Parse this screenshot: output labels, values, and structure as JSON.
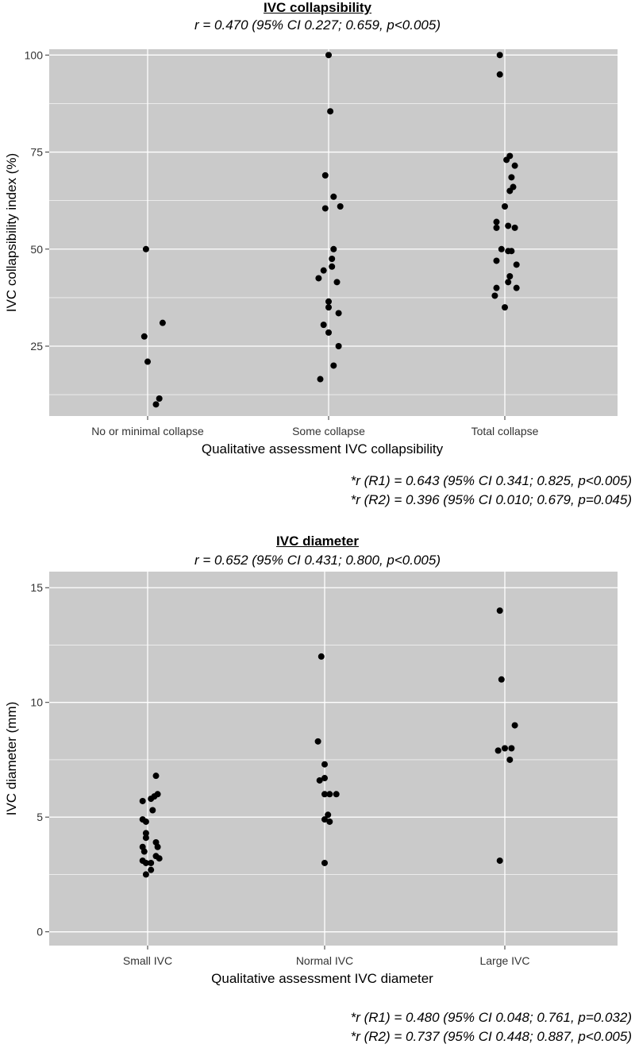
{
  "chart_data": [
    {
      "type": "scatter",
      "title": "IVC collapsibility",
      "subtitle": "r = 0.470 (95% CI 0.227; 0.659, p<0.005)",
      "xlabel": "Qualitative assessment IVC collapsibility",
      "ylabel": "IVC collapsibility index (%)",
      "categories": [
        "No or minimal collapse",
        "Some collapse",
        "Total collapse"
      ],
      "yticks": [
        25,
        50,
        75,
        100
      ],
      "ylim": [
        7,
        101.5
      ],
      "notes": [
        "*r (R1) = 0.643 (95% CI 0.341; 0.825, p<0.005)",
        "*r (R2) = 0.396 (95% CI 0.010; 0.679, p=0.045)"
      ],
      "points": [
        {
          "category": 0,
          "jitter": -0.01,
          "y": 50
        },
        {
          "category": 0,
          "jitter": 0.09,
          "y": 31
        },
        {
          "category": 0,
          "jitter": -0.02,
          "y": 27.5
        },
        {
          "category": 0,
          "jitter": 0.0,
          "y": 21
        },
        {
          "category": 0,
          "jitter": 0.07,
          "y": 11.5
        },
        {
          "category": 0,
          "jitter": 0.05,
          "y": 10
        },
        {
          "category": 1,
          "jitter": 0.0,
          "y": 100
        },
        {
          "category": 1,
          "jitter": 0.01,
          "y": 85.5
        },
        {
          "category": 1,
          "jitter": -0.02,
          "y": 69
        },
        {
          "category": 1,
          "jitter": 0.03,
          "y": 63.5
        },
        {
          "category": 1,
          "jitter": 0.07,
          "y": 61
        },
        {
          "category": 1,
          "jitter": -0.02,
          "y": 60.5
        },
        {
          "category": 1,
          "jitter": 0.03,
          "y": 50
        },
        {
          "category": 1,
          "jitter": 0.02,
          "y": 47.5
        },
        {
          "category": 1,
          "jitter": 0.02,
          "y": 45.5
        },
        {
          "category": 1,
          "jitter": -0.03,
          "y": 44.5
        },
        {
          "category": 1,
          "jitter": -0.06,
          "y": 42.5
        },
        {
          "category": 1,
          "jitter": 0.05,
          "y": 41.5
        },
        {
          "category": 1,
          "jitter": 0.0,
          "y": 36.5
        },
        {
          "category": 1,
          "jitter": 0.0,
          "y": 35
        },
        {
          "category": 1,
          "jitter": 0.06,
          "y": 33.5
        },
        {
          "category": 1,
          "jitter": -0.03,
          "y": 30.5
        },
        {
          "category": 1,
          "jitter": 0.0,
          "y": 28.5
        },
        {
          "category": 1,
          "jitter": 0.06,
          "y": 25
        },
        {
          "category": 1,
          "jitter": 0.03,
          "y": 20
        },
        {
          "category": 1,
          "jitter": -0.05,
          "y": 16.5
        },
        {
          "category": 2,
          "jitter": -0.03,
          "y": 100
        },
        {
          "category": 2,
          "jitter": -0.03,
          "y": 95
        },
        {
          "category": 2,
          "jitter": 0.03,
          "y": 74
        },
        {
          "category": 2,
          "jitter": 0.01,
          "y": 73
        },
        {
          "category": 2,
          "jitter": 0.06,
          "y": 71.5
        },
        {
          "category": 2,
          "jitter": 0.04,
          "y": 68.5
        },
        {
          "category": 2,
          "jitter": 0.05,
          "y": 66
        },
        {
          "category": 2,
          "jitter": 0.03,
          "y": 65
        },
        {
          "category": 2,
          "jitter": 0.0,
          "y": 61
        },
        {
          "category": 2,
          "jitter": -0.05,
          "y": 57
        },
        {
          "category": 2,
          "jitter": -0.05,
          "y": 55.5
        },
        {
          "category": 2,
          "jitter": 0.02,
          "y": 56
        },
        {
          "category": 2,
          "jitter": 0.06,
          "y": 55.5
        },
        {
          "category": 2,
          "jitter": -0.02,
          "y": 50
        },
        {
          "category": 2,
          "jitter": 0.02,
          "y": 49.5
        },
        {
          "category": 2,
          "jitter": 0.04,
          "y": 49.5
        },
        {
          "category": 2,
          "jitter": -0.05,
          "y": 47
        },
        {
          "category": 2,
          "jitter": 0.07,
          "y": 46
        },
        {
          "category": 2,
          "jitter": 0.03,
          "y": 43
        },
        {
          "category": 2,
          "jitter": 0.02,
          "y": 41.5
        },
        {
          "category": 2,
          "jitter": -0.05,
          "y": 40
        },
        {
          "category": 2,
          "jitter": 0.07,
          "y": 40
        },
        {
          "category": 2,
          "jitter": -0.06,
          "y": 38
        },
        {
          "category": 2,
          "jitter": 0.0,
          "y": 35
        }
      ]
    },
    {
      "type": "scatter",
      "title": "IVC diameter",
      "subtitle": "r = 0.652 (95% CI 0.431; 0.800, p<0.005)",
      "xlabel": "Qualitative assessment IVC diameter",
      "ylabel": "IVC diameter (mm)",
      "categories": [
        "Small IVC",
        "Normal IVC",
        "Large IVC"
      ],
      "yticks": [
        0,
        5,
        10,
        15
      ],
      "ylim": [
        -0.6,
        15.7
      ],
      "notes": [
        "*r (R1) = 0.480 (95% CI 0.048; 0.761, p=0.032)",
        "*r (R2) = 0.737 (95% CI 0.448; 0.887, p<0.005)"
      ],
      "points": [
        {
          "category": 0,
          "jitter": 0.05,
          "y": 6.8
        },
        {
          "category": 0,
          "jitter": 0.06,
          "y": 6.0
        },
        {
          "category": 0,
          "jitter": 0.04,
          "y": 5.9
        },
        {
          "category": 0,
          "jitter": 0.02,
          "y": 5.8
        },
        {
          "category": 0,
          "jitter": -0.03,
          "y": 5.7
        },
        {
          "category": 0,
          "jitter": 0.03,
          "y": 5.3
        },
        {
          "category": 0,
          "jitter": -0.03,
          "y": 4.9
        },
        {
          "category": 0,
          "jitter": -0.01,
          "y": 4.8
        },
        {
          "category": 0,
          "jitter": -0.01,
          "y": 4.3
        },
        {
          "category": 0,
          "jitter": -0.01,
          "y": 4.1
        },
        {
          "category": 0,
          "jitter": 0.05,
          "y": 3.9
        },
        {
          "category": 0,
          "jitter": 0.06,
          "y": 3.7
        },
        {
          "category": 0,
          "jitter": -0.03,
          "y": 3.7
        },
        {
          "category": 0,
          "jitter": -0.02,
          "y": 3.5
        },
        {
          "category": 0,
          "jitter": 0.05,
          "y": 3.3
        },
        {
          "category": 0,
          "jitter": 0.07,
          "y": 3.2
        },
        {
          "category": 0,
          "jitter": -0.03,
          "y": 3.1
        },
        {
          "category": 0,
          "jitter": -0.01,
          "y": 3.0
        },
        {
          "category": 0,
          "jitter": 0.02,
          "y": 3.0
        },
        {
          "category": 0,
          "jitter": 0.02,
          "y": 2.7
        },
        {
          "category": 0,
          "jitter": -0.01,
          "y": 2.5
        },
        {
          "category": 1,
          "jitter": -0.02,
          "y": 12
        },
        {
          "category": 1,
          "jitter": -0.04,
          "y": 8.3
        },
        {
          "category": 1,
          "jitter": 0.0,
          "y": 7.3
        },
        {
          "category": 1,
          "jitter": 0.0,
          "y": 6.7
        },
        {
          "category": 1,
          "jitter": -0.03,
          "y": 6.6
        },
        {
          "category": 1,
          "jitter": 0.0,
          "y": 6.0
        },
        {
          "category": 1,
          "jitter": 0.03,
          "y": 6.0
        },
        {
          "category": 1,
          "jitter": 0.07,
          "y": 6.0
        },
        {
          "category": 1,
          "jitter": 0.02,
          "y": 5.1
        },
        {
          "category": 1,
          "jitter": 0.0,
          "y": 4.9
        },
        {
          "category": 1,
          "jitter": 0.03,
          "y": 4.8
        },
        {
          "category": 1,
          "jitter": 0.0,
          "y": 3.0
        },
        {
          "category": 2,
          "jitter": -0.03,
          "y": 14
        },
        {
          "category": 2,
          "jitter": -0.02,
          "y": 11
        },
        {
          "category": 2,
          "jitter": 0.06,
          "y": 9.0
        },
        {
          "category": 2,
          "jitter": 0.04,
          "y": 8.0
        },
        {
          "category": 2,
          "jitter": 0.0,
          "y": 8.0
        },
        {
          "category": 2,
          "jitter": -0.04,
          "y": 7.9
        },
        {
          "category": 2,
          "jitter": 0.03,
          "y": 7.5
        },
        {
          "category": 2,
          "jitter": -0.03,
          "y": 3.1
        }
      ]
    }
  ]
}
